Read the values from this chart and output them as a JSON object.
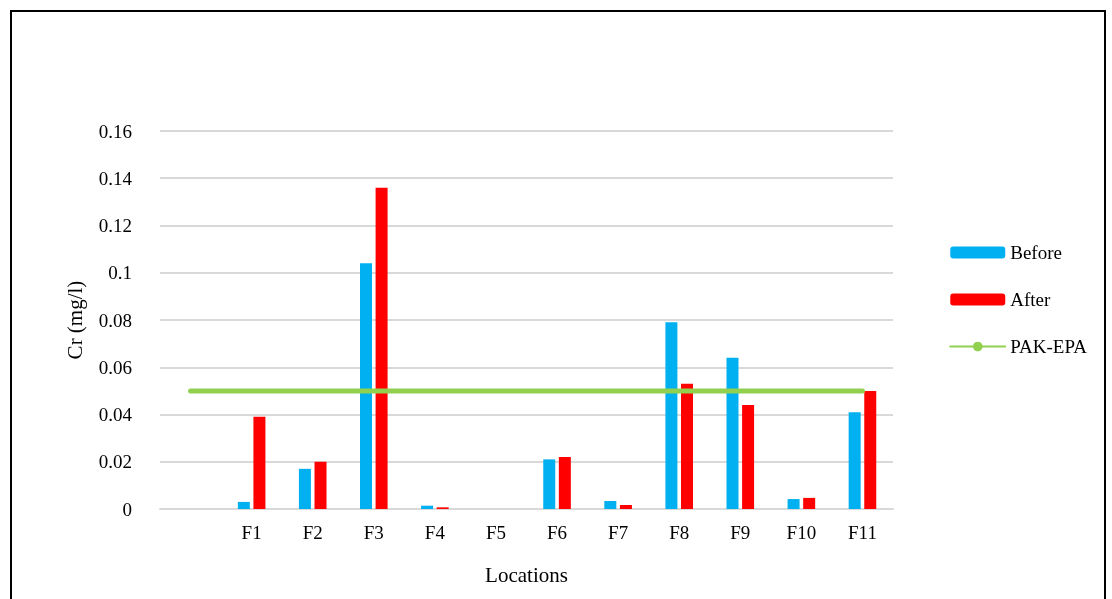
{
  "chart_data": {
    "type": "bar",
    "xlabel": "Locations",
    "ylabel": "Cr (mg/l)",
    "categories": [
      null,
      "F1",
      "F2",
      "F3",
      "F4",
      "F5",
      "F6",
      "F7",
      "F8",
      "F9",
      "F10",
      "F11"
    ],
    "series": [
      {
        "name": "Before",
        "color": "#00b0f0",
        "values": [
          null,
          0.003,
          0.017,
          0.104,
          0.0014,
          0,
          0.021,
          0.0034,
          0.079,
          0.064,
          0.0042,
          0.041
        ]
      },
      {
        "name": "After",
        "color": "#ff0000",
        "values": [
          null,
          0.039,
          0.02,
          0.136,
          0.0007,
          0,
          0.022,
          0.0017,
          0.053,
          0.044,
          0.0047,
          0.05
        ]
      },
      {
        "name": "PAK-EPA",
        "type": "line",
        "color": "#92d050",
        "values": [
          0.05,
          0.05,
          0.05,
          0.05,
          0.05,
          0.05,
          0.05,
          0.05,
          0.05,
          0.05,
          0.05,
          0.05
        ]
      }
    ],
    "ylim": [
      0,
      0.16
    ],
    "yticks": [
      0,
      0.02,
      0.04,
      0.06,
      0.08,
      0.1,
      0.12,
      0.14,
      0.16
    ],
    "grid": "y",
    "legend": "right",
    "marker": "none"
  }
}
